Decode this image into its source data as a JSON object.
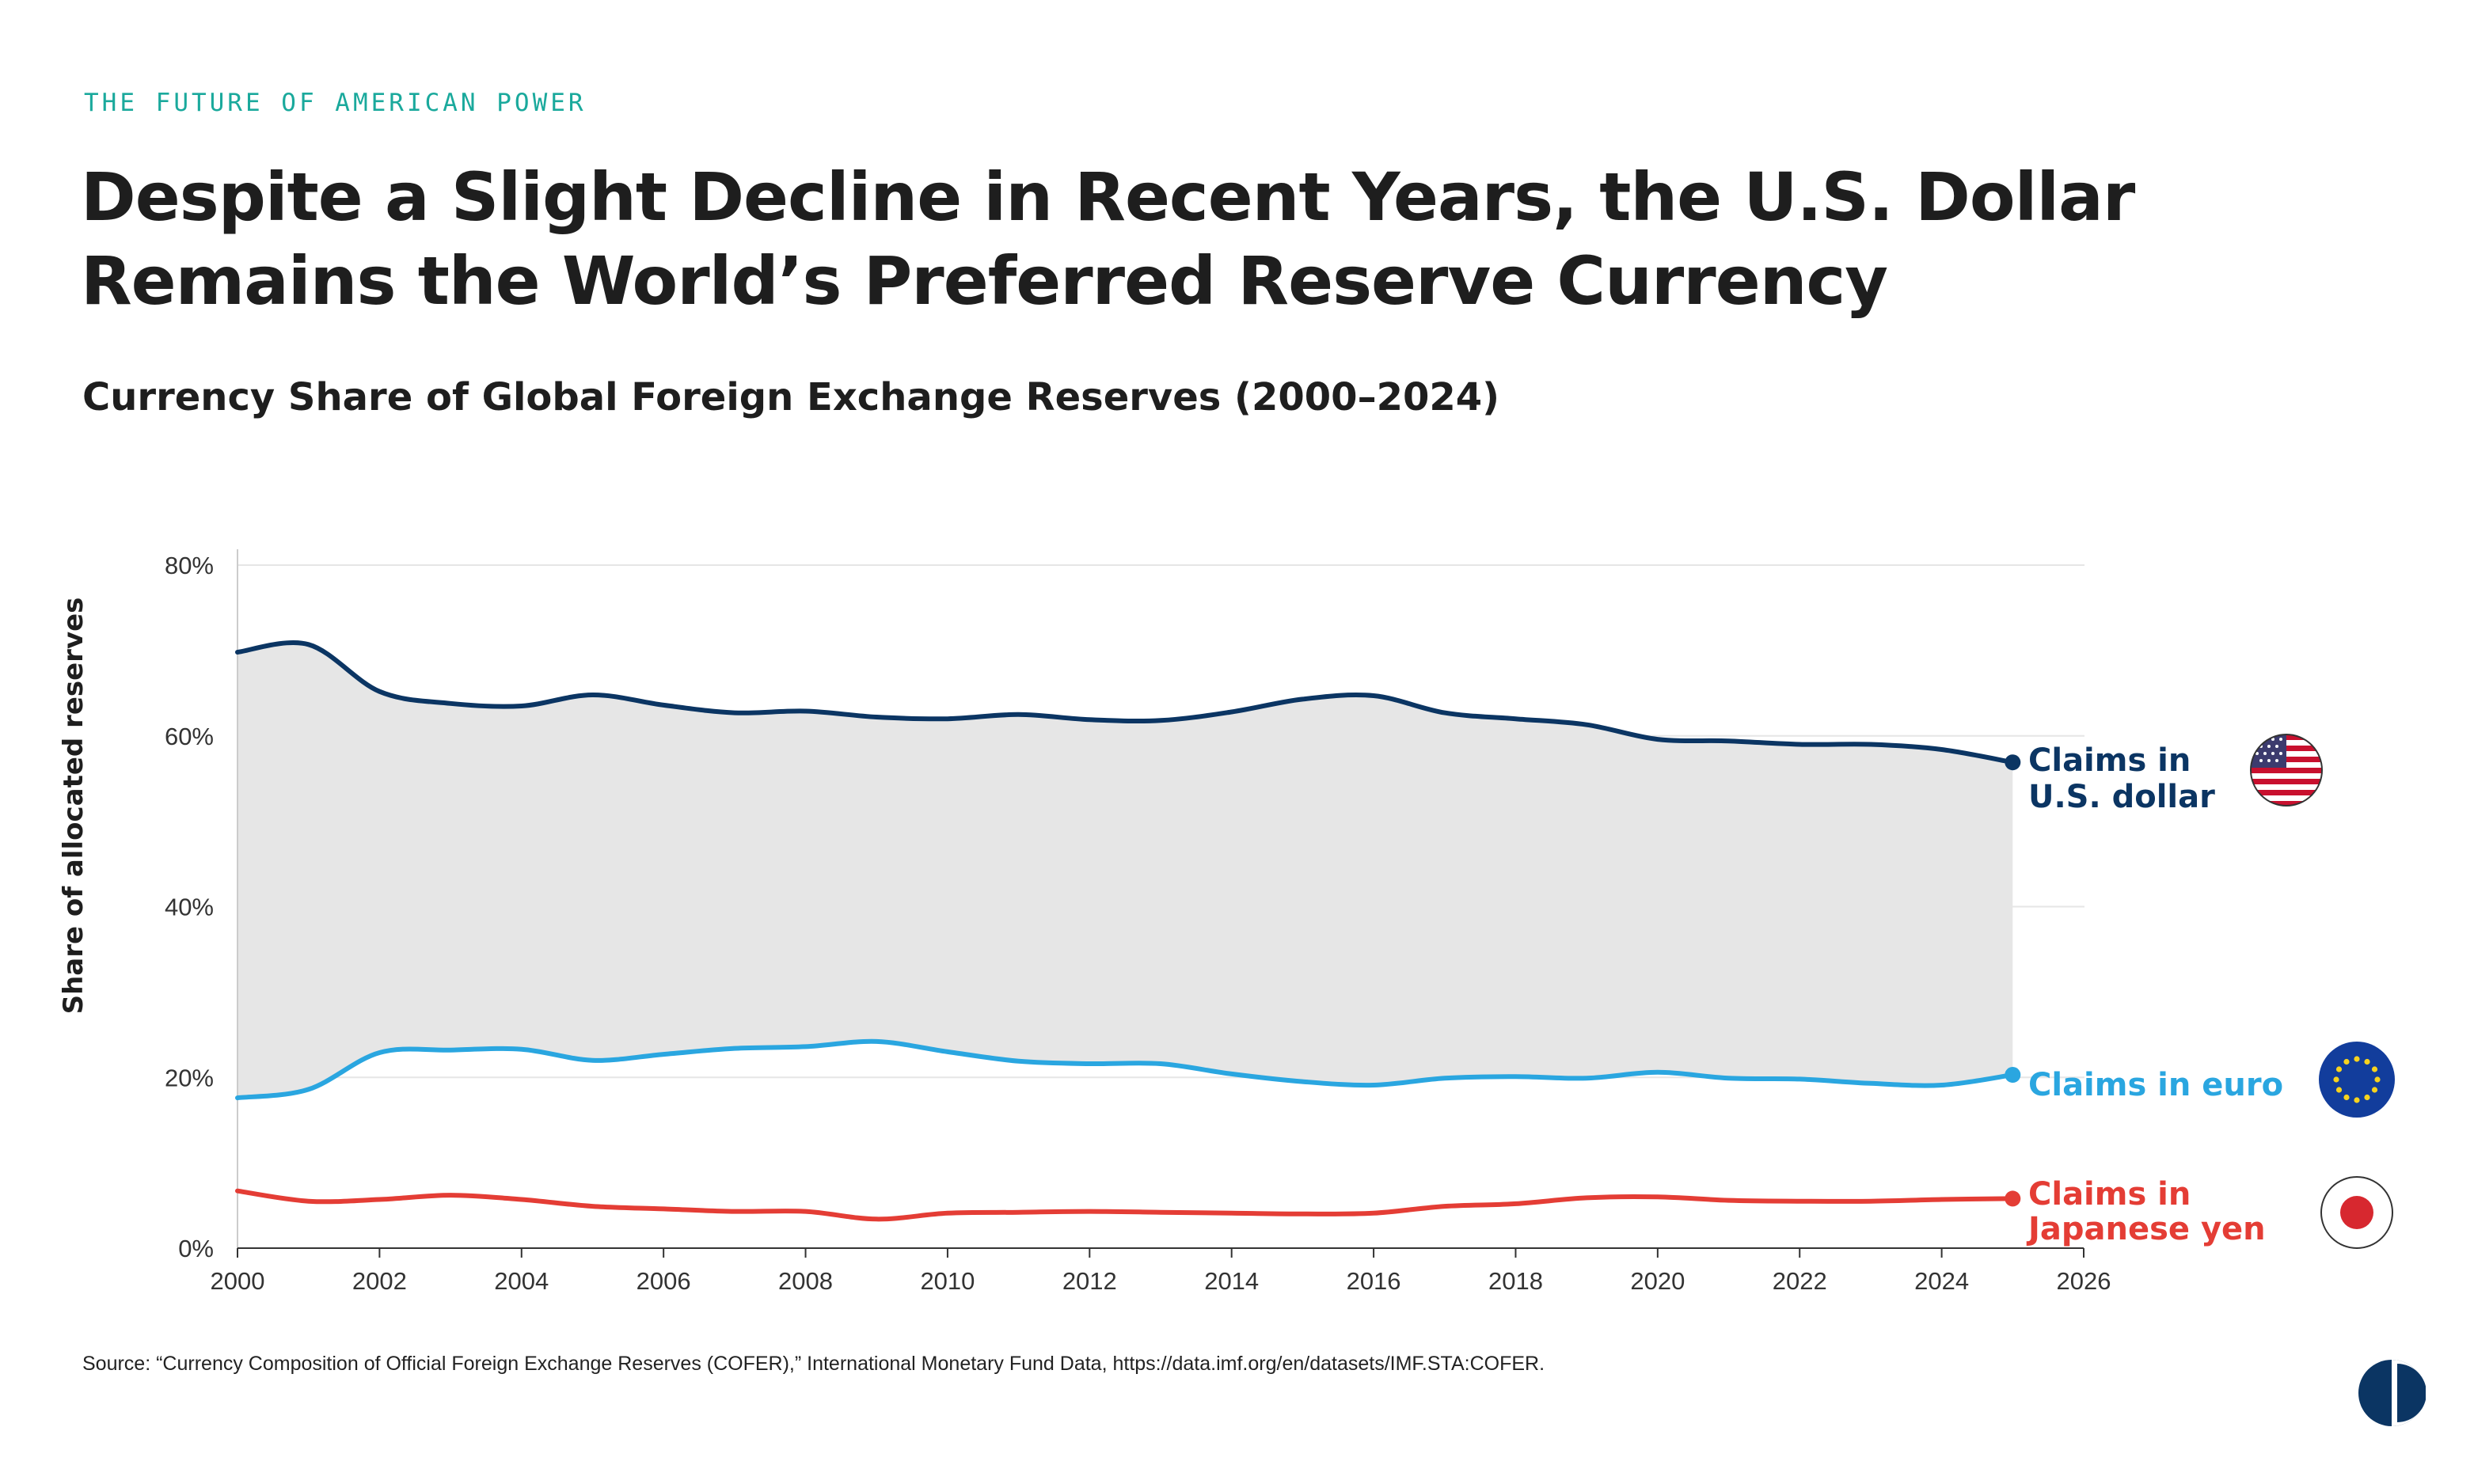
{
  "header": {
    "kicker": "THE FUTURE OF AMERICAN POWER",
    "title": "Despite a Slight Decline in Recent Years, the U.S. Dollar Remains the World’s Preferred Reserve Currency",
    "subtitle": "Currency Share of Global Foreign Exchange Reserves (2000–2024)"
  },
  "footer": {
    "source": "Source: “Currency Composition of Official Foreign Exchange Reserves (COFER),” International Monetary Fund Data, https://data.imf.org/en/datasets/IMF.STA:COFER."
  },
  "icons": {
    "usd": "us-flag-icon",
    "eur": "eu-flag-icon",
    "jpy": "japan-flag-icon",
    "logo": "publisher-logo-icon"
  },
  "chart_data": {
    "type": "line",
    "title": "Currency Share of Global Foreign Exchange Reserves (2000–2024)",
    "xlabel": "",
    "ylabel": "Share of allocated reserves",
    "xlim": [
      2000,
      2026
    ],
    "ylim": [
      0,
      80
    ],
    "x_ticks": [
      "2000",
      "2002",
      "2004",
      "2006",
      "2008",
      "2010",
      "2012",
      "2014",
      "2016",
      "2018",
      "2020",
      "2022",
      "2024",
      "2026"
    ],
    "y_ticks": [
      "0%",
      "20%",
      "40%",
      "60%",
      "80%"
    ],
    "grid": true,
    "shaded_area_between": [
      "Claims in euro",
      "Claims in U.S. dollar"
    ],
    "x": [
      2000,
      2001,
      2002,
      2003,
      2004,
      2005,
      2006,
      2007,
      2008,
      2009,
      2010,
      2011,
      2012,
      2013,
      2014,
      2015,
      2016,
      2017,
      2018,
      2019,
      2020,
      2021,
      2022,
      2023,
      2024,
      2025
    ],
    "series": [
      {
        "name": "Claims in U.S. dollar",
        "label_lines": [
          "Claims in",
          "U.S. dollar"
        ],
        "color": "#0b3563",
        "values": [
          69.8,
          70.7,
          65.2,
          63.8,
          63.5,
          64.8,
          63.6,
          62.7,
          62.9,
          62.2,
          62.0,
          62.5,
          61.9,
          61.8,
          62.8,
          64.3,
          64.7,
          62.7,
          62.0,
          61.3,
          59.6,
          59.4,
          59.0,
          59.0,
          58.4,
          56.9
        ]
      },
      {
        "name": "Claims in euro",
        "label_lines": [
          "Claims in euro"
        ],
        "color": "#2aa6e0",
        "values": [
          17.6,
          18.6,
          22.9,
          23.2,
          23.3,
          22.0,
          22.7,
          23.4,
          23.6,
          24.2,
          23.0,
          21.9,
          21.6,
          21.6,
          20.4,
          19.5,
          19.1,
          19.9,
          20.1,
          19.9,
          20.6,
          19.9,
          19.8,
          19.3,
          19.1,
          20.3
        ]
      },
      {
        "name": "Claims in Japanese yen",
        "label_lines": [
          "Claims in",
          "Japanese yen"
        ],
        "color": "#e43d35",
        "values": [
          6.7,
          5.5,
          5.7,
          6.2,
          5.7,
          4.9,
          4.6,
          4.3,
          4.3,
          3.4,
          4.1,
          4.2,
          4.3,
          4.2,
          4.1,
          4.0,
          4.1,
          4.9,
          5.2,
          5.9,
          6.0,
          5.6,
          5.5,
          5.5,
          5.7,
          5.8
        ]
      }
    ]
  }
}
